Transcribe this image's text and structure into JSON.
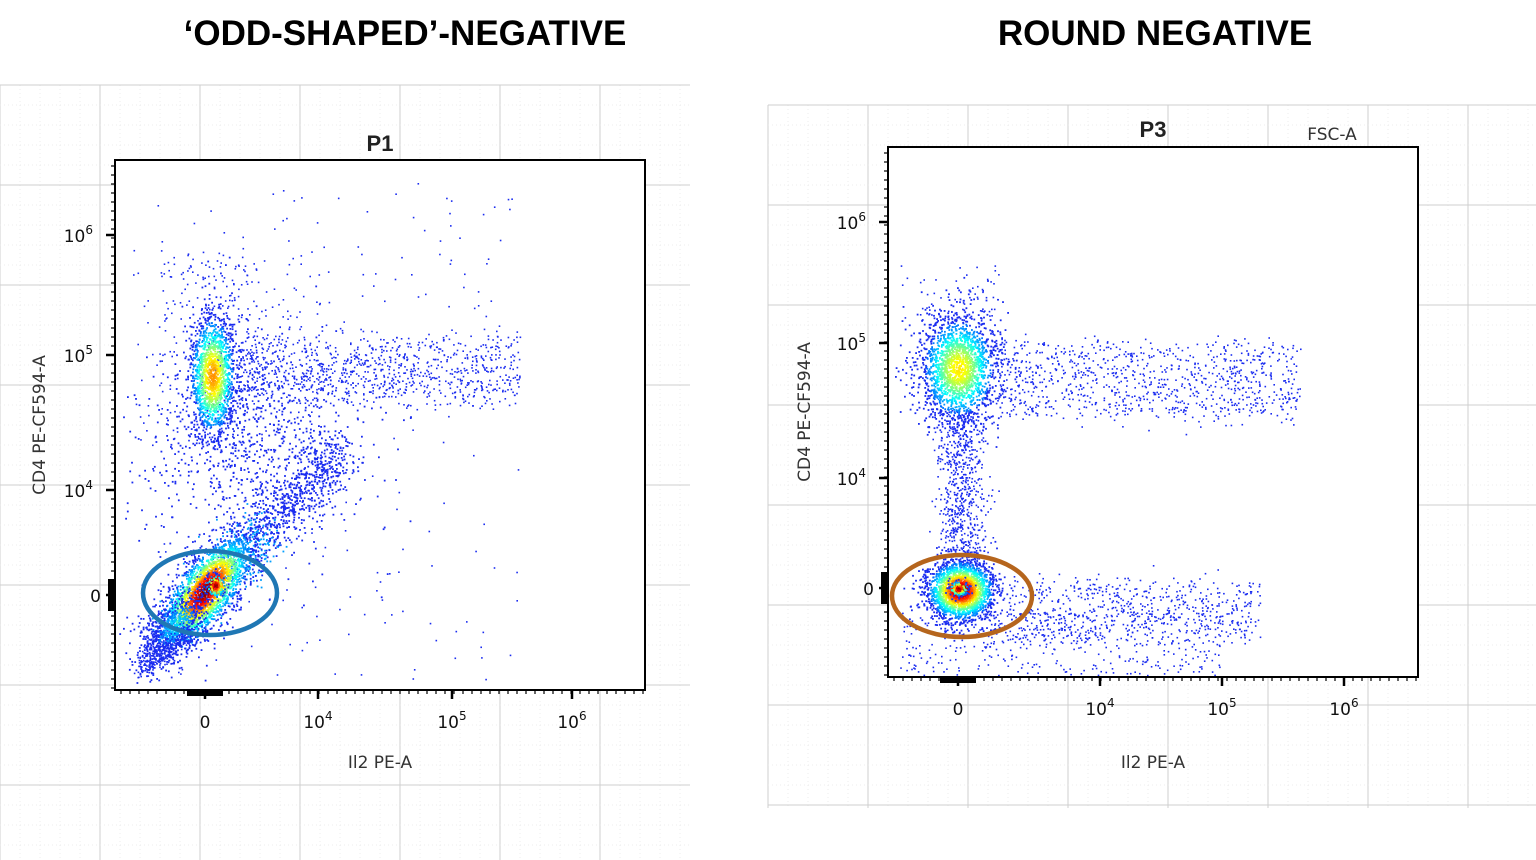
{
  "headings": {
    "left": "‘ODD-SHAPED’-NEGATIVE",
    "right": "ROUND NEGATIVE"
  },
  "chart_data": [
    {
      "type": "scatter",
      "subtype": "flow-cytometry-density",
      "title": "P1",
      "xlabel": "Il2 PE-A",
      "ylabel": "CD4 PE-CF594-A",
      "x_ticks": [
        {
          "base": "0",
          "exp": ""
        },
        {
          "base": "10",
          "exp": "4"
        },
        {
          "base": "10",
          "exp": "5"
        },
        {
          "base": "10",
          "exp": "6"
        }
      ],
      "y_ticks": [
        {
          "base": "0",
          "exp": ""
        },
        {
          "base": "10",
          "exp": "4"
        },
        {
          "base": "10",
          "exp": "5"
        },
        {
          "base": "10",
          "exp": "6"
        }
      ],
      "x_scale": "biexponential",
      "y_scale": "biexponential",
      "populations": [
        {
          "name": "CD4+ Il2-",
          "center": {
            "x": 0,
            "y": 60000
          },
          "density": "high"
        },
        {
          "name": "double-negative diagonal (odd-shaped)",
          "center": {
            "x": 0,
            "y": 0
          },
          "density": "peak"
        },
        {
          "name": "CD4+ Il2+",
          "x_range": [
            10000,
            300000
          ],
          "y_approx": 60000,
          "density": "sparse"
        }
      ],
      "gate": {
        "shape": "ellipse",
        "color": "#1f77b4",
        "around": "double-negative population"
      }
    },
    {
      "type": "scatter",
      "subtype": "flow-cytometry-density",
      "title": "P3",
      "corner_label": "FSC-A",
      "xlabel": "Il2 PE-A",
      "ylabel": "CD4 PE-CF594-A",
      "x_ticks": [
        {
          "base": "0",
          "exp": ""
        },
        {
          "base": "10",
          "exp": "4"
        },
        {
          "base": "10",
          "exp": "5"
        },
        {
          "base": "10",
          "exp": "6"
        }
      ],
      "y_ticks": [
        {
          "base": "0",
          "exp": ""
        },
        {
          "base": "10",
          "exp": "4"
        },
        {
          "base": "10",
          "exp": "5"
        },
        {
          "base": "10",
          "exp": "6"
        }
      ],
      "x_scale": "biexponential",
      "y_scale": "biexponential",
      "populations": [
        {
          "name": "CD4+ Il2-",
          "center": {
            "x": 0,
            "y": 60000
          },
          "density": "high"
        },
        {
          "name": "double-negative (round)",
          "center": {
            "x": 0,
            "y": 0
          },
          "density": "peak"
        },
        {
          "name": "CD4+ Il2+",
          "x_range": [
            10000,
            300000
          ],
          "y_approx": 60000,
          "density": "sparse"
        },
        {
          "name": "CD4- Il2+",
          "x_range": [
            3000,
            100000
          ],
          "y_approx": 0,
          "density": "sparse"
        }
      ],
      "gate": {
        "shape": "ellipse",
        "color": "#b5651d",
        "around": "double-negative population"
      }
    }
  ],
  "colors": {
    "gate_left": "#1f77b4",
    "gate_right": "#b5651d",
    "dots": "#1a2cf0",
    "grid": "#d9d9d9"
  }
}
